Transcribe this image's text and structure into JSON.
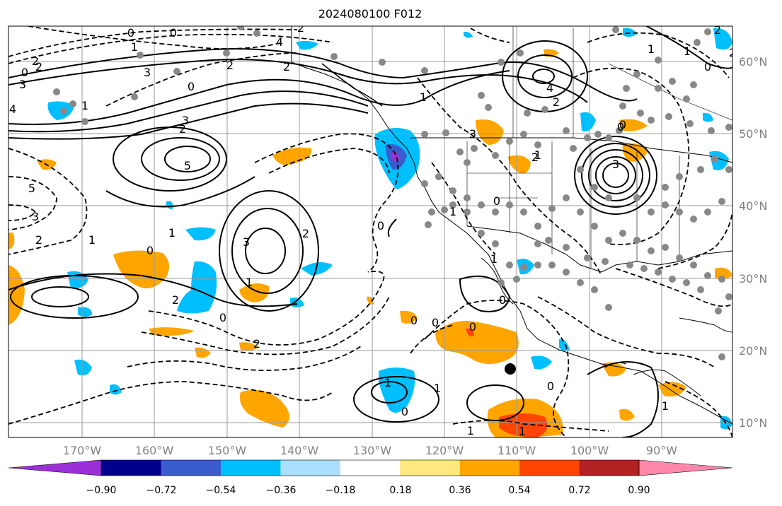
{
  "title": "2024080100 F012",
  "lon_labels": [
    "170°W",
    "160°W",
    "150°W",
    "140°W",
    "130°W",
    "120°W",
    "110°W",
    "100°W",
    "90°W"
  ],
  "lat_labels": [
    "60°N",
    "50°N",
    "40°N",
    "30°N",
    "20°N",
    "10°N"
  ],
  "colorbar": {
    "ticks": [
      "−0.90",
      "−0.72",
      "−0.54",
      "−0.36",
      "−0.18",
      "0.18",
      "0.36",
      "0.54",
      "0.72",
      "0.90"
    ],
    "colors": [
      "#9b30d8",
      "#00008b",
      "#3a5ccc",
      "#00bfff",
      "#aadfff",
      "#ffffff",
      "#ffe97f",
      "#ffa500",
      "#ff4500",
      "#b22222",
      "#ff88aa"
    ]
  },
  "contour_labels": [
    "0",
    "0",
    "1",
    "2",
    "3",
    "2",
    "3",
    "2",
    "4",
    "5",
    "3",
    "2",
    "4",
    "2",
    "1",
    "0",
    "2",
    "0",
    "4",
    "2",
    "3",
    "0",
    "2",
    "5",
    "3",
    "2",
    "1",
    "0",
    "1",
    "3",
    "2",
    "1",
    "0",
    "2",
    "0",
    "0",
    "1",
    "0",
    "2",
    "0",
    "1",
    "1",
    "0",
    "0",
    "1",
    "0",
    "1",
    "3",
    "0",
    "1",
    "1",
    "0",
    "1",
    "2",
    "1",
    "1",
    "0",
    "2",
    "1"
  ],
  "marker_color": "#000000"
}
